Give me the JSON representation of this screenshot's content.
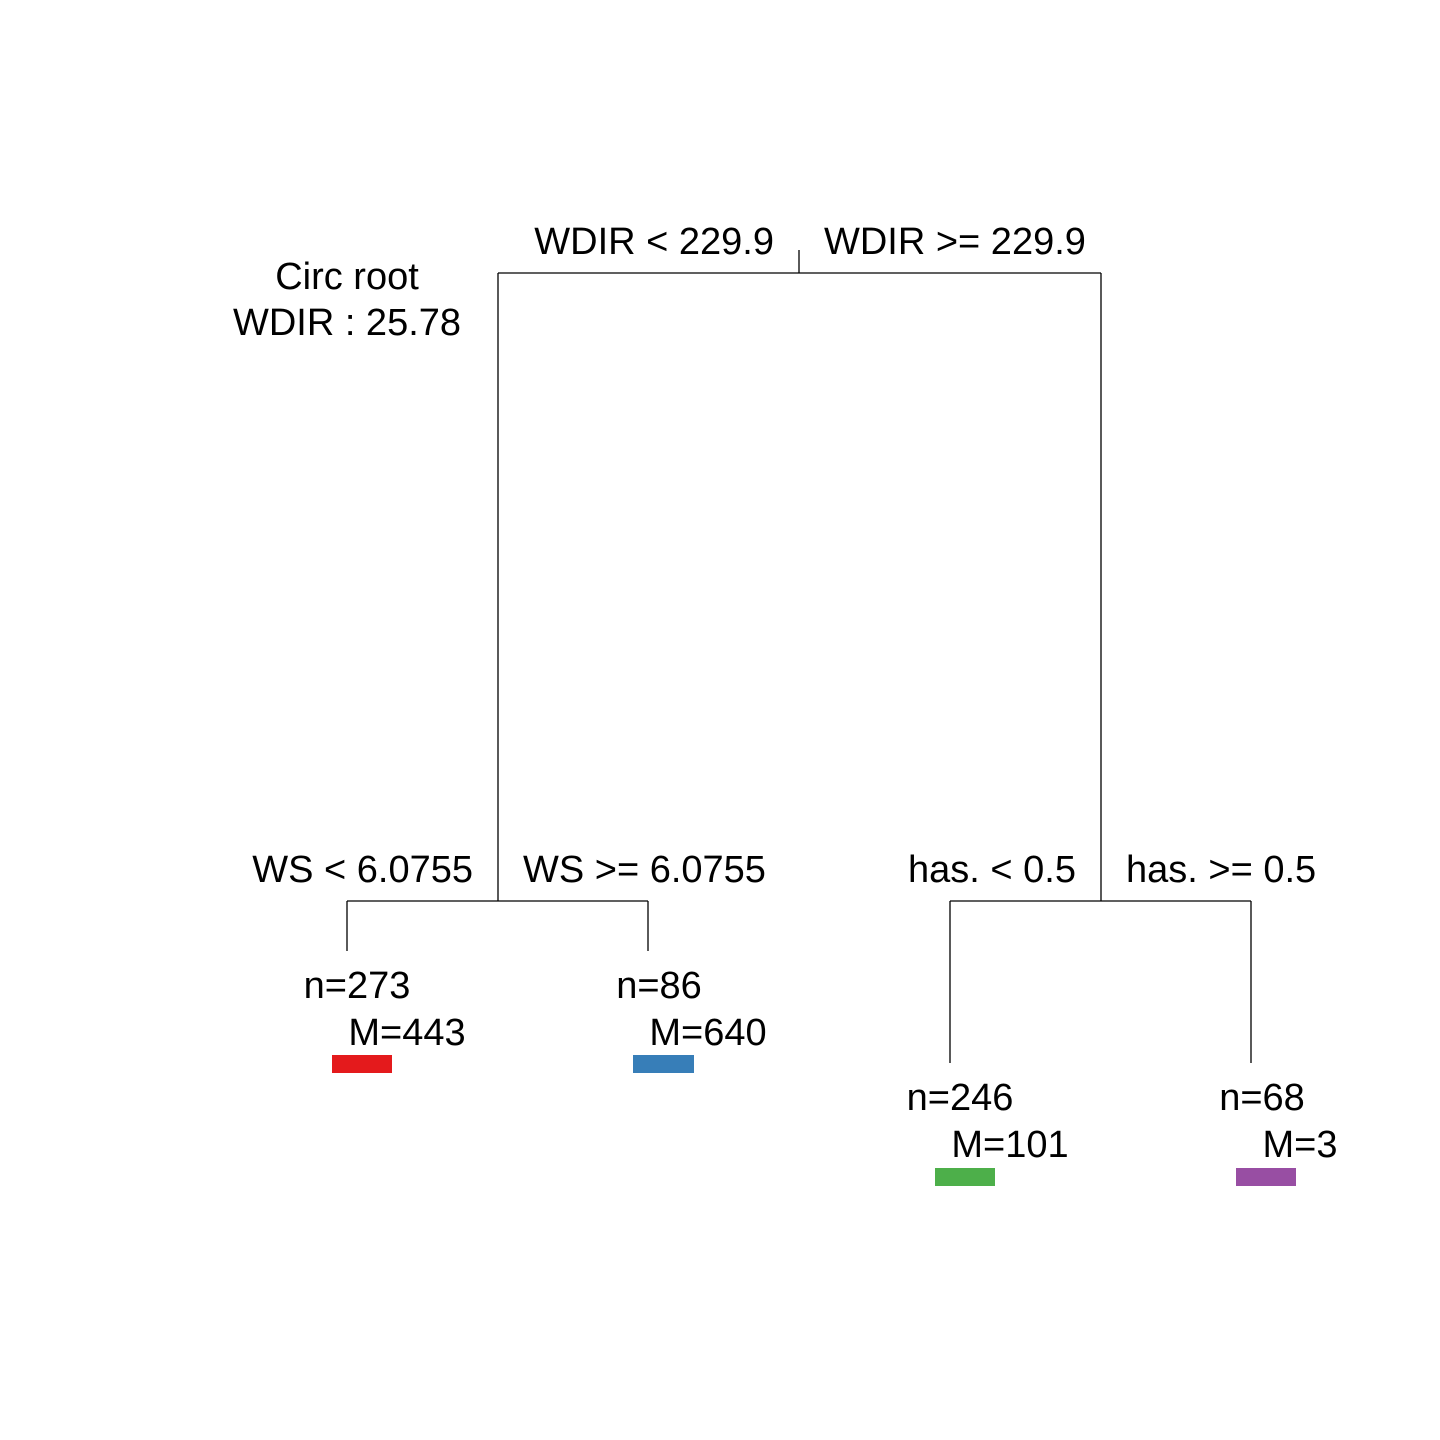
{
  "root_info": {
    "line1": "Circ root",
    "line2": "WDIR :  25.78"
  },
  "splits": {
    "root_left": "WDIR < 229.9",
    "root_right": "WDIR >= 229.9",
    "left_left": "WS < 6.0755",
    "left_right": "WS >= 6.0755",
    "right_left": "has. < 0.5",
    "right_right": "has. >= 0.5"
  },
  "leaves": [
    {
      "n": "n=273",
      "m": "M=443",
      "color": "#e41a1c"
    },
    {
      "n": "n=86",
      "m": "M=640",
      "color": "#377eb8"
    },
    {
      "n": "n=246",
      "m": "M=101",
      "color": "#4daf4a"
    },
    {
      "n": "n=68",
      "m": "M=3",
      "color": "#984ea3"
    }
  ]
}
